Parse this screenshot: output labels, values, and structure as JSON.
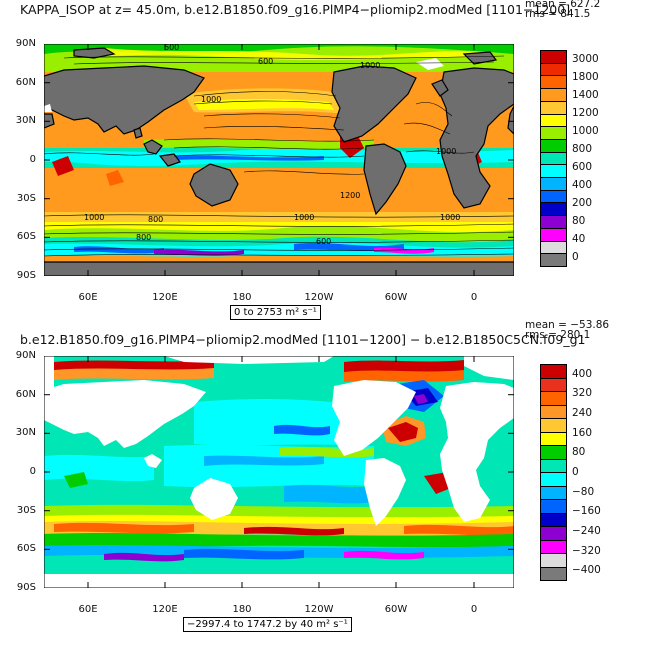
{
  "panels": [
    {
      "id": "panel1",
      "title": "KAPPA_ISOP at z=  45.0m, b.e12.B1850.f09_g16.PlMP4−pliomip2.modMed [1101−1200]",
      "stats_mean": "mean = 627.2",
      "stats_rms": "rms = 841.5",
      "range_text": "0 to 2753 m² s⁻¹",
      "colorbar": {
        "labels": [
          "3000",
          "1800",
          "1400",
          "1200",
          "1000",
          "800",
          "600",
          "400",
          "200",
          "80",
          "40",
          "0"
        ],
        "colors": [
          "#cc0000",
          "#ee2a00",
          "#ff6400",
          "#ff9a1e",
          "#ffc832",
          "#ffff00",
          "#9aee00",
          "#00cc00",
          "#00e6b4",
          "#00ffff",
          "#00b4ff",
          "#0064ff",
          "#0000c8",
          "#8c00d2",
          "#ff00ff",
          "#dcdcdc",
          "#7a7a7a"
        ]
      },
      "contour_labels": [
        "600",
        "600",
        "1000",
        "1000",
        "800",
        "1000",
        "1000",
        "600",
        "1200",
        "1000",
        "800",
        "1000"
      ],
      "land_color": "#6e6e6e"
    },
    {
      "id": "panel2",
      "title": "b.e12.B1850.f09_g16.PlMP4−pliomip2.modMed [1101−1200] − b.e12.B1850C5CN.f09_g1",
      "stats_mean": "mean = −53.86",
      "stats_rms": "rms = 280.1",
      "range_text": "−2997.4 to 1747.2 by 40 m² s⁻¹",
      "colorbar": {
        "labels": [
          "400",
          "320",
          "240",
          "160",
          "80",
          "0",
          "−80",
          "−160",
          "−240",
          "−320",
          "−400"
        ],
        "colors": [
          "#cc0000",
          "#e8321e",
          "#ff6400",
          "#ff9628",
          "#ffc832",
          "#ffff00",
          "#00cc00",
          "#00e6b4",
          "#00ffff",
          "#00b4ff",
          "#0064ff",
          "#0000c8",
          "#8c00d2",
          "#ff00ff",
          "#dcdcdc",
          "#7a7a7a"
        ]
      },
      "land_color": "#ffffff"
    }
  ],
  "axes": {
    "lat_ticks": [
      "90N",
      "60N",
      "30N",
      "0",
      "30S",
      "60S",
      "90S"
    ],
    "lon_ticks": [
      "60E",
      "120E",
      "180",
      "120W",
      "60W",
      "0"
    ]
  }
}
